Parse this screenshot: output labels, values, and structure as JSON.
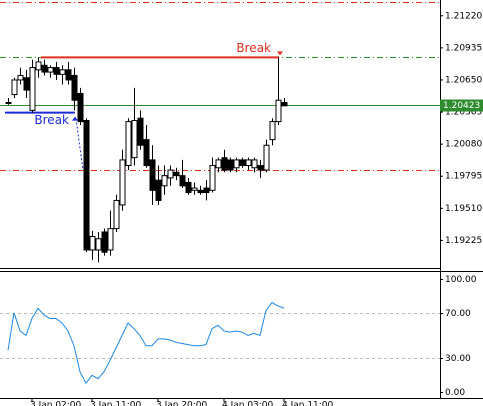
{
  "chart_data": [
    {
      "type": "candlestick",
      "categories": [
        null,
        null,
        null,
        null,
        "3 Jan 02:00",
        null,
        null,
        null,
        null,
        null,
        null,
        null,
        null,
        null,
        "3 Jan 11:00",
        null,
        null,
        null,
        null,
        null,
        null,
        null,
        null,
        null,
        null,
        "3 Jan 20:00",
        null,
        null,
        null,
        null,
        null,
        null,
        null,
        null,
        null,
        null,
        "4 Jan 03:00",
        null,
        null,
        null,
        null,
        null,
        null,
        null,
        null,
        null,
        "4 Jan 11:00"
      ],
      "open": [
        1.2045,
        1.2052,
        1.2065,
        1.2067,
        1.2038,
        1.2074,
        1.2078,
        1.2072,
        1.2076,
        1.207,
        1.2074,
        1.2069,
        1.2053,
        1.2029,
        1.1914,
        1.1914,
        1.193,
        1.1914,
        1.1933,
        1.1954,
        1.1989,
        1.1996,
        1.2031,
        1.2012,
        1.1994,
        1.1976,
        1.1971,
        1.1978,
        1.1983,
        1.198,
        1.1974,
        1.1967,
        1.1967,
        1.1969,
        1.1967,
        1.1987,
        1.1996,
        1.1994,
        1.1987,
        1.1994,
        1.1989,
        1.1987,
        1.1989,
        1.1985,
        1.2012,
        1.2028,
        1.2045
      ],
      "high": [
        1.2049,
        1.2067,
        1.2076,
        1.2074,
        1.2083,
        1.2085,
        1.2083,
        1.2078,
        1.2081,
        1.2078,
        1.2081,
        1.2076,
        1.2058,
        1.2031,
        1.1931,
        1.193,
        1.1933,
        1.1949,
        1.1963,
        1.2003,
        1.2031,
        1.2058,
        1.2038,
        1.2025,
        1.2007,
        1.1989,
        1.1989,
        1.1989,
        1.1987,
        1.1994,
        1.1978,
        1.1974,
        1.1971,
        1.1976,
        1.1996,
        1.1996,
        1.2003,
        1.1996,
        1.1996,
        1.1996,
        1.1996,
        1.1996,
        1.1994,
        1.2012,
        1.2031,
        1.2085,
        1.2049
      ],
      "low": [
        1.2043,
        1.2049,
        1.2061,
        1.2049,
        1.2036,
        1.2067,
        1.2069,
        1.2067,
        1.2065,
        1.2061,
        1.2061,
        1.2038,
        1.2025,
        1.1912,
        1.1905,
        1.1903,
        1.1909,
        1.1909,
        1.193,
        1.1949,
        1.1985,
        1.1989,
        1.2003,
        1.1987,
        1.1954,
        1.1954,
        1.1963,
        1.1971,
        1.1976,
        1.1969,
        1.1963,
        1.1963,
        1.1963,
        1.1958,
        1.1965,
        1.1983,
        1.1983,
        1.1983,
        1.1983,
        1.1987,
        1.1985,
        1.1983,
        1.1978,
        1.1983,
        1.2007,
        1.2025,
        1.2043
      ],
      "close": [
        1.2045,
        1.2065,
        1.2069,
        1.2056,
        1.2076,
        1.2081,
        1.2072,
        1.2076,
        1.207,
        1.2074,
        1.2065,
        1.2047,
        1.2028,
        1.1914,
        1.1926,
        1.1924,
        1.1912,
        1.1933,
        1.1958,
        1.1994,
        1.2028,
        1.2029,
        1.2007,
        1.1989,
        1.1967,
        1.1958,
        1.198,
        1.1985,
        1.198,
        1.1971,
        1.1965,
        1.1969,
        1.1965,
        1.1965,
        1.1989,
        1.1994,
        1.1985,
        1.1985,
        1.1994,
        1.1989,
        1.1994,
        1.1994,
        1.1985,
        1.2007,
        1.2028,
        1.2047,
        1.2042
      ],
      "ylim": [
        1.1898,
        1.2136
      ],
      "yticks": [
        {
          "value": 1.2122,
          "label": "1.21220"
        },
        1.20935,
        {
          "value": 1.2065,
          "label": "1.20650"
        },
        1.20365,
        {
          "value": 1.2008,
          "label": "1.20080"
        },
        1.19795,
        {
          "value": 1.1951,
          "label": "1.19510"
        },
        1.19225
      ],
      "current_price": 1.20423,
      "levels": [
        {
          "value": 1.2134,
          "color": "#e0301e"
        },
        {
          "value": 1.2085,
          "color": "#2e8b2e"
        },
        {
          "value": 1.1985,
          "color": "#e0301e"
        }
      ],
      "breaks": [
        {
          "label": "Break",
          "value": 1.2085,
          "from": 6,
          "to": 45,
          "color": "#e0301e"
        },
        {
          "label": "Break",
          "value": 1.2036,
          "from": 0,
          "to": 11,
          "color": "#1d2bd6"
        }
      ]
    },
    {
      "type": "line",
      "values": [
        37,
        70,
        54,
        50,
        65,
        74,
        68,
        65,
        65,
        61,
        54,
        41,
        18,
        8,
        15,
        12,
        18,
        28,
        39,
        50,
        61,
        56,
        50,
        41,
        41,
        47,
        47,
        46,
        44,
        43,
        42,
        41,
        41,
        42,
        56,
        59,
        54,
        53,
        54,
        53,
        50,
        52,
        50,
        72,
        79,
        76,
        74
      ],
      "color": "#1e88e5",
      "ylim": [
        -5,
        105
      ],
      "yticks": [
        {
          "value": 0,
          "label": "0.00"
        },
        {
          "value": 30,
          "label": "30.00"
        },
        {
          "value": 70,
          "label": "70.00"
        },
        {
          "value": 100,
          "label": "100.00"
        }
      ]
    }
  ]
}
